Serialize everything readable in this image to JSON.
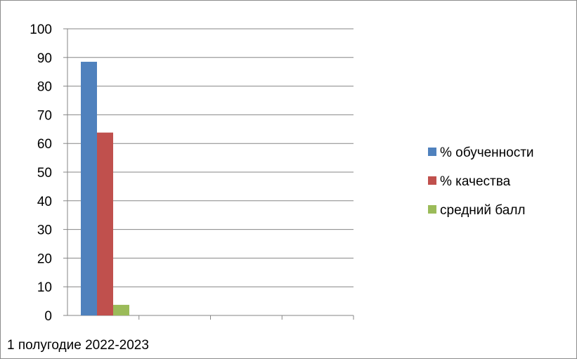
{
  "chart_data": {
    "type": "bar",
    "categories": [
      "1 полугодие 2022-2023",
      "",
      "",
      ""
    ],
    "series": [
      {
        "name": "% обученности",
        "values": [
          88.5,
          null,
          null,
          null
        ],
        "color": "#4F81BD"
      },
      {
        "name": "% качества",
        "values": [
          63.8,
          null,
          null,
          null
        ],
        "color": "#C0504D"
      },
      {
        "name": "средний балл",
        "values": [
          3.7,
          null,
          null,
          null
        ],
        "color": "#9BBB59"
      }
    ],
    "title": "",
    "xlabel": "",
    "ylabel": "",
    "ylim": [
      0,
      100
    ],
    "ytick_step": 10,
    "yticks": [
      "0",
      "10",
      "20",
      "30",
      "40",
      "50",
      "60",
      "70",
      "80",
      "90",
      "100"
    ],
    "grid": true,
    "legend": "right"
  }
}
